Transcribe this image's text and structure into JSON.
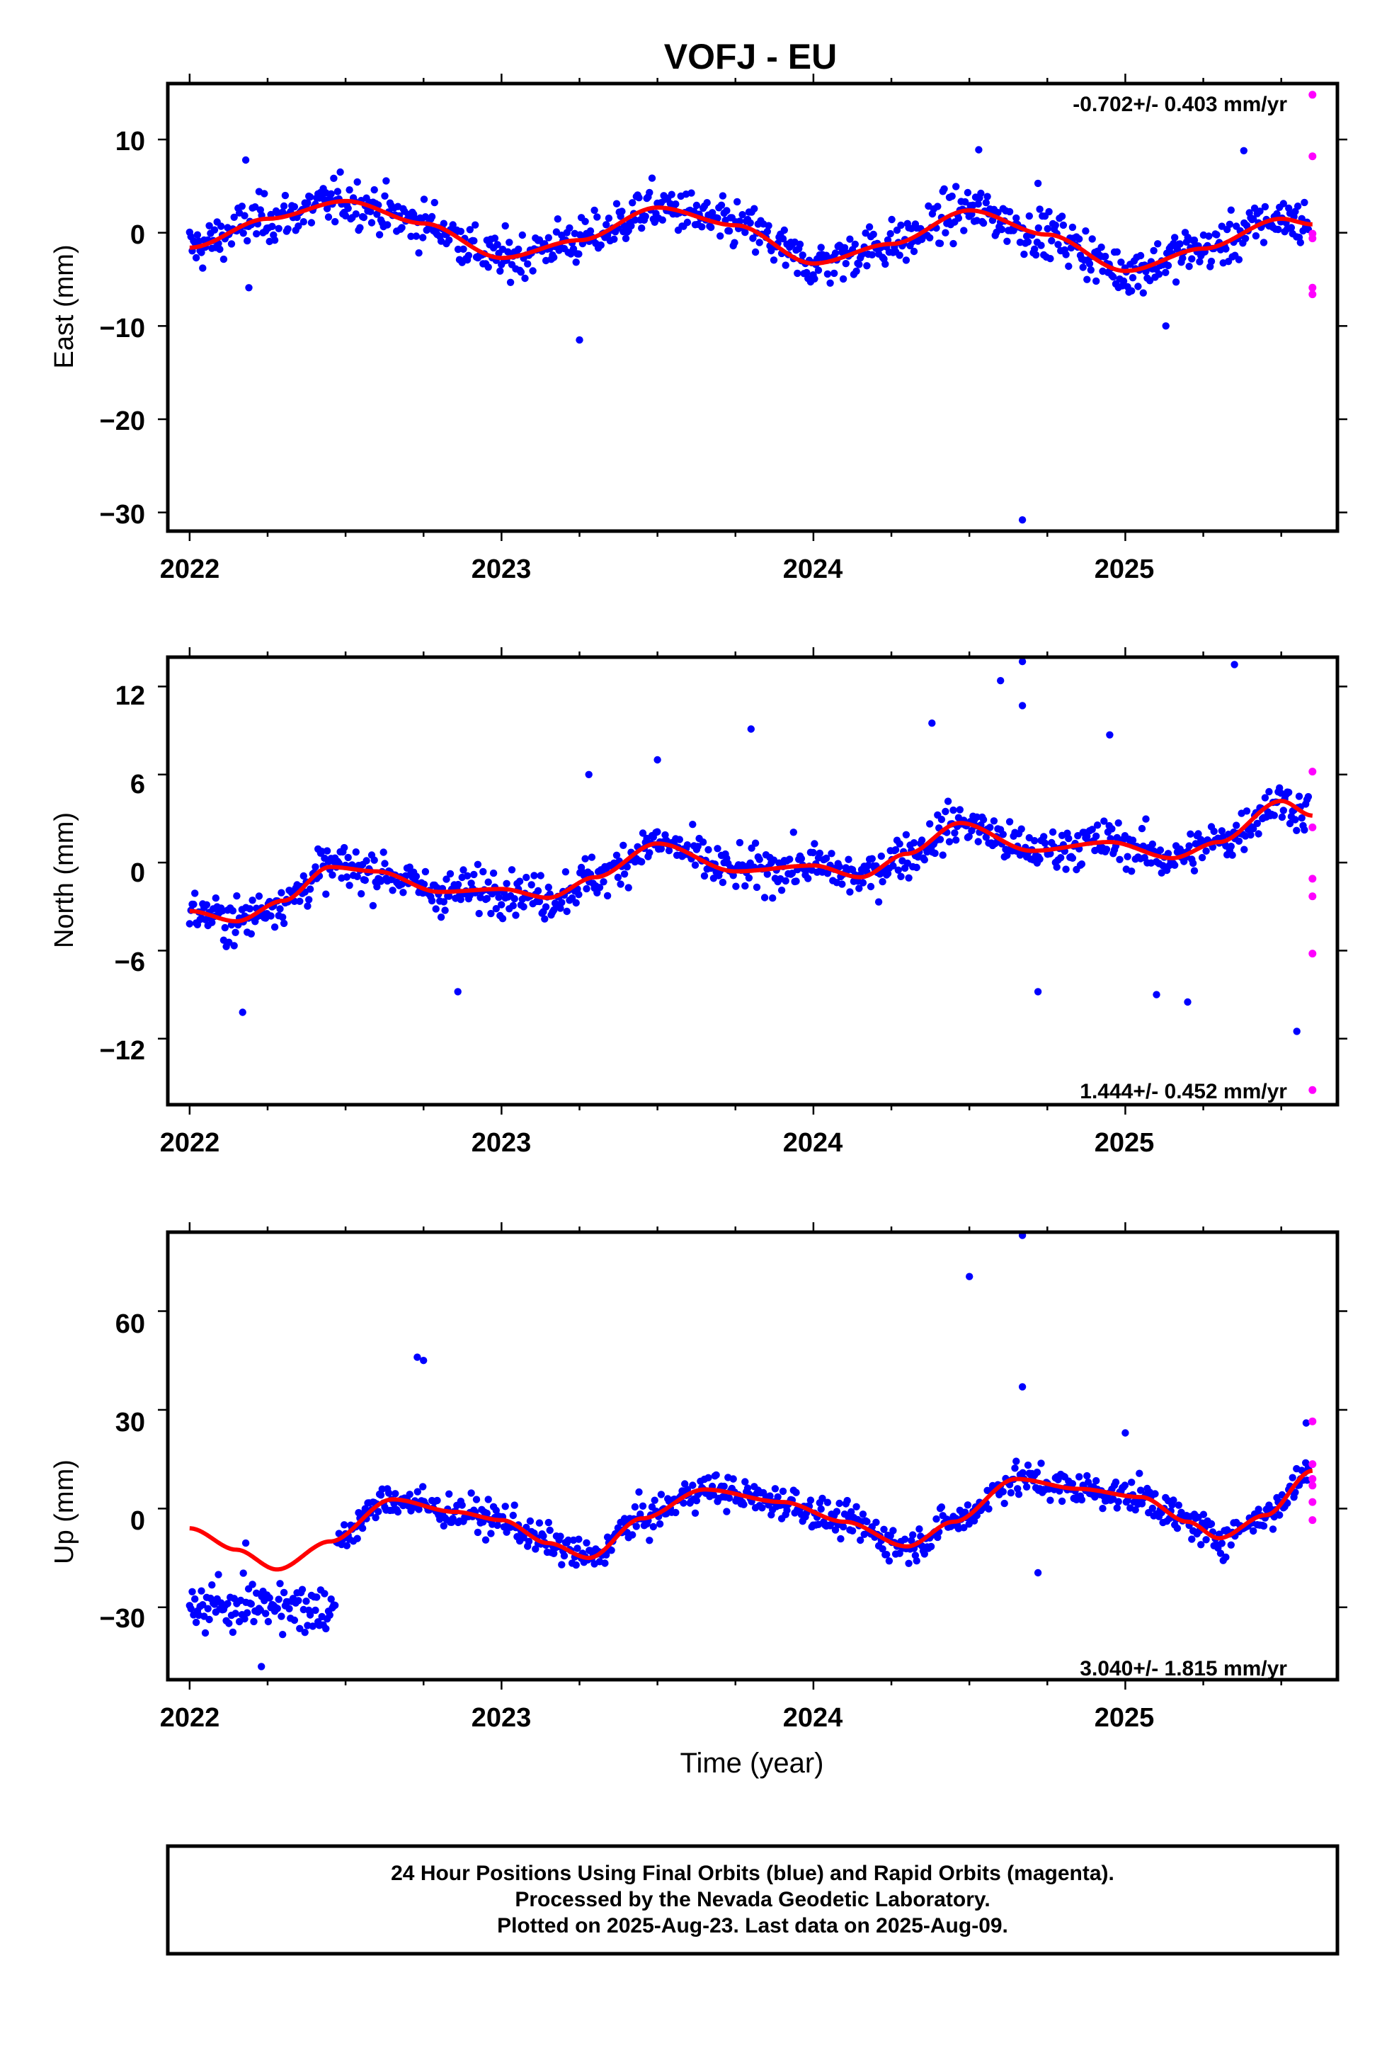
{
  "chart_data": {
    "type": "scatter",
    "title": "VOFJ - EU",
    "x_axis": {
      "label": "Time (year)",
      "range": [
        2021.93,
        2025.68
      ],
      "ticks": [
        2022,
        2023,
        2024,
        2025
      ],
      "tick_labels": [
        "2022",
        "2023",
        "2024",
        "2025"
      ]
    },
    "series_colors": {
      "final": "#0000ff",
      "rapid": "#ff00ff",
      "model": "#ff0000"
    },
    "panels": [
      {
        "id": "east",
        "ylabel": "East (mm)",
        "ylim": [
          -32,
          16
        ],
        "yticks": [
          10,
          0,
          -10,
          -20,
          -30
        ],
        "ytick_labels": [
          "10",
          "0",
          "−10",
          "−20",
          "−30"
        ],
        "rate_label": "-0.702+/- 0.403 mm/yr",
        "rate_position": "top-right",
        "model": {
          "x": [
            2022.0,
            2022.25,
            2022.5,
            2022.75,
            2023.0,
            2023.25,
            2023.5,
            2023.75,
            2024.0,
            2024.25,
            2024.5,
            2024.75,
            2025.0,
            2025.25,
            2025.5,
            2025.6
          ],
          "y": [
            -1.6,
            1.5,
            3.4,
            1.0,
            -2.7,
            -0.8,
            2.7,
            0.8,
            -3.3,
            -1.2,
            2.4,
            -0.2,
            -4.1,
            -1.7,
            1.5,
            0.9
          ]
        },
        "final_scatter": {
          "amplitude": 3.2,
          "trend": -0.7
        },
        "final_outliers": [
          [
            2022.18,
            7.8
          ],
          [
            2022.19,
            -5.9
          ],
          [
            2023.25,
            -11.5
          ],
          [
            2024.53,
            8.9
          ],
          [
            2024.67,
            -30.8
          ],
          [
            2024.72,
            5.3
          ],
          [
            2025.13,
            -10.0
          ],
          [
            2025.38,
            8.8
          ]
        ],
        "rapid_points": [
          [
            2025.6,
            14.8
          ],
          [
            2025.6,
            8.2
          ],
          [
            2025.6,
            -0.1
          ],
          [
            2025.6,
            -0.6
          ],
          [
            2025.6,
            -5.9
          ],
          [
            2025.6,
            -6.6
          ]
        ]
      },
      {
        "id": "north",
        "ylabel": "North (mm)",
        "ylim": [
          -16.5,
          14
        ],
        "yticks": [
          12,
          6,
          0,
          -6,
          -12
        ],
        "ytick_labels": [
          "12",
          "6",
          "0",
          "−6",
          "−12"
        ],
        "rate_label": "1.444+/- 0.452 mm/yr",
        "rate_position": "bottom-right",
        "model": {
          "x": [
            2022.0,
            2022.15,
            2022.3,
            2022.45,
            2022.6,
            2022.8,
            2023.0,
            2023.15,
            2023.3,
            2023.5,
            2023.75,
            2024.0,
            2024.15,
            2024.3,
            2024.47,
            2024.7,
            2024.95,
            2025.15,
            2025.3,
            2025.5,
            2025.6
          ],
          "y": [
            -3.3,
            -4.0,
            -2.6,
            -0.3,
            -0.6,
            -2.0,
            -1.8,
            -2.4,
            -1.0,
            1.3,
            -0.6,
            -0.2,
            -1.0,
            0.6,
            2.7,
            0.8,
            1.4,
            0.3,
            1.4,
            4.2,
            3.2
          ]
        },
        "final_scatter": {
          "amplitude": 1.9,
          "trend": 1.44
        },
        "final_outliers": [
          [
            2022.17,
            -10.2
          ],
          [
            2022.86,
            -8.8
          ],
          [
            2023.28,
            6.0
          ],
          [
            2023.5,
            7.0
          ],
          [
            2023.8,
            9.1
          ],
          [
            2024.38,
            9.5
          ],
          [
            2024.6,
            12.4
          ],
          [
            2024.67,
            13.7
          ],
          [
            2024.67,
            10.7
          ],
          [
            2024.72,
            -8.8
          ],
          [
            2024.95,
            8.7
          ],
          [
            2025.1,
            -9.0
          ],
          [
            2025.2,
            -9.5
          ],
          [
            2025.35,
            13.5
          ],
          [
            2025.55,
            -11.5
          ]
        ],
        "rapid_points": [
          [
            2025.6,
            6.2
          ],
          [
            2025.6,
            2.4
          ],
          [
            2025.6,
            -1.1
          ],
          [
            2025.6,
            -2.3
          ],
          [
            2025.6,
            -6.2
          ],
          [
            2025.6,
            -15.5
          ]
        ]
      },
      {
        "id": "up",
        "ylabel": "Up (mm)",
        "ylim": [
          -52,
          84
        ],
        "yticks": [
          60,
          30,
          0,
          -30
        ],
        "ytick_labels": [
          "60",
          "30",
          "0",
          "−30"
        ],
        "rate_label": "3.040+/- 1.815 mm/yr",
        "rate_position": "bottom-right",
        "model": {
          "x": [
            2022.0,
            2022.15,
            2022.28,
            2022.45,
            2022.65,
            2022.85,
            2023.0,
            2023.15,
            2023.28,
            2023.45,
            2023.65,
            2023.9,
            2024.1,
            2024.3,
            2024.45,
            2024.65,
            2024.85,
            2025.05,
            2025.2,
            2025.3,
            2025.45,
            2025.6
          ],
          "y": [
            -6.0,
            -12.5,
            -18.5,
            -10.0,
            2.8,
            -1.0,
            -3.5,
            -10.5,
            -15.0,
            -3.0,
            5.8,
            2.0,
            -4.0,
            -11.5,
            -4.0,
            9.0,
            6.0,
            3.5,
            -4.0,
            -9.0,
            -2.0,
            11.5
          ]
        },
        "final_scatter": {
          "amplitude": 6.5,
          "trend": 3.0
        },
        "final_outliers": [
          [
            2022.23,
            -48.0
          ],
          [
            2022.18,
            -10.5
          ],
          [
            2022.73,
            46.0
          ],
          [
            2022.75,
            45.0
          ],
          [
            2024.5,
            70.5
          ],
          [
            2024.67,
            83.0
          ],
          [
            2024.67,
            37.0
          ],
          [
            2024.72,
            -19.5
          ],
          [
            2025.0,
            23.0
          ],
          [
            2025.58,
            26.0
          ]
        ],
        "rapid_points": [
          [
            2025.6,
            26.5
          ],
          [
            2025.6,
            13.5
          ],
          [
            2025.6,
            9.0
          ],
          [
            2025.6,
            7.0
          ],
          [
            2025.6,
            2.0
          ],
          [
            2025.6,
            -3.5
          ]
        ]
      }
    ]
  },
  "footer": {
    "line1": "24 Hour Positions Using Final Orbits (blue) and Rapid Orbits (magenta).",
    "line2": "Processed by the Nevada Geodetic Laboratory.",
    "line3": "Plotted on 2025-Aug-23. Last data on 2025-Aug-09."
  }
}
